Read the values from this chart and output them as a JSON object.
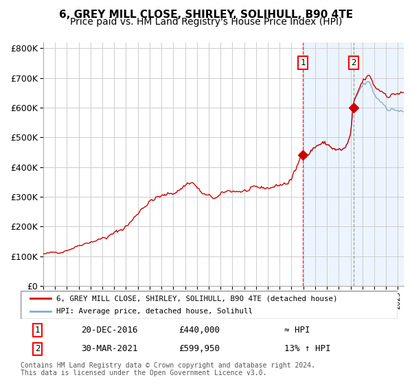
{
  "title": "6, GREY MILL CLOSE, SHIRLEY, SOLIHULL, B90 4TE",
  "subtitle": "Price paid vs. HM Land Registry's House Price Index (HPI)",
  "ylim": [
    0,
    820000
  ],
  "yticks": [
    0,
    100000,
    200000,
    300000,
    400000,
    500000,
    600000,
    700000,
    800000
  ],
  "ytick_labels": [
    "£0",
    "£100K",
    "£200K",
    "£300K",
    "£400K",
    "£500K",
    "£600K",
    "£700K",
    "£800K"
  ],
  "background_color": "#ffffff",
  "plot_bg_color": "#ffffff",
  "grid_color": "#cccccc",
  "hpi_line_color": "#88aacc",
  "price_line_color": "#cc0000",
  "span_color": "#ddeeff",
  "sale1_date": 2016.97,
  "sale1_price": 440000,
  "sale1_label": "1",
  "sale2_date": 2021.24,
  "sale2_price": 599950,
  "sale2_label": "2",
  "legend_label_price": "6, GREY MILL CLOSE, SHIRLEY, SOLIHULL, B90 4TE (detached house)",
  "legend_label_hpi": "HPI: Average price, detached house, Solihull",
  "table_row1": [
    "1",
    "20-DEC-2016",
    "£440,000",
    "≈ HPI"
  ],
  "table_row2": [
    "2",
    "30-MAR-2021",
    "£599,950",
    "13% ↑ HPI"
  ],
  "footnote": "Contains HM Land Registry data © Crown copyright and database right 2024.\nThis data is licensed under the Open Government Licence v3.0.",
  "title_fontsize": 11,
  "subtitle_fontsize": 10,
  "xstart": 1995.0,
  "xend": 2025.5
}
